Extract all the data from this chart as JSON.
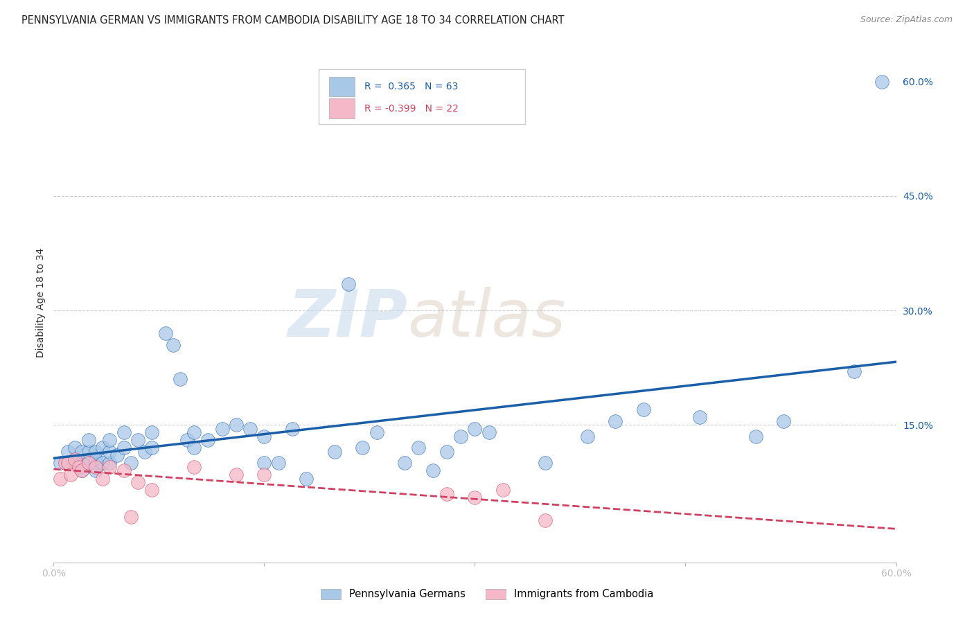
{
  "title": "PENNSYLVANIA GERMAN VS IMMIGRANTS FROM CAMBODIA DISABILITY AGE 18 TO 34 CORRELATION CHART",
  "source": "Source: ZipAtlas.com",
  "xlabel_bottom_left": "0.0%",
  "xlabel_bottom_right": "60.0%",
  "ylabel": "Disability Age 18 to 34",
  "y_ticks": [
    0.0,
    0.15,
    0.3,
    0.45,
    0.6
  ],
  "y_tick_labels": [
    "",
    "15.0%",
    "30.0%",
    "45.0%",
    "60.0%"
  ],
  "x_min": 0.0,
  "x_max": 0.6,
  "y_min": -0.03,
  "y_max": 0.65,
  "R_blue": 0.365,
  "N_blue": 63,
  "R_pink": -0.399,
  "N_pink": 22,
  "blue_color": "#a8c8e8",
  "pink_color": "#f4b8c8",
  "blue_line_color": "#1a5fa8",
  "pink_line_color": "#d04060",
  "legend_label_blue": "Pennsylvania Germans",
  "legend_label_pink": "Immigrants from Cambodia",
  "watermark_zip": "ZIP",
  "watermark_atlas": "atlas",
  "blue_scatter_x": [
    0.005,
    0.01,
    0.01,
    0.015,
    0.015,
    0.02,
    0.02,
    0.02,
    0.025,
    0.025,
    0.025,
    0.03,
    0.03,
    0.03,
    0.03,
    0.035,
    0.035,
    0.04,
    0.04,
    0.04,
    0.045,
    0.05,
    0.05,
    0.055,
    0.06,
    0.065,
    0.07,
    0.07,
    0.08,
    0.085,
    0.09,
    0.095,
    0.1,
    0.1,
    0.11,
    0.12,
    0.13,
    0.14,
    0.15,
    0.15,
    0.16,
    0.17,
    0.18,
    0.2,
    0.21,
    0.22,
    0.23,
    0.25,
    0.26,
    0.27,
    0.28,
    0.29,
    0.3,
    0.31,
    0.35,
    0.38,
    0.4,
    0.42,
    0.46,
    0.5,
    0.52,
    0.57,
    0.59
  ],
  "blue_scatter_y": [
    0.1,
    0.1,
    0.115,
    0.1,
    0.12,
    0.09,
    0.1,
    0.115,
    0.1,
    0.115,
    0.13,
    0.09,
    0.1,
    0.105,
    0.115,
    0.1,
    0.12,
    0.1,
    0.115,
    0.13,
    0.11,
    0.12,
    0.14,
    0.1,
    0.13,
    0.115,
    0.12,
    0.14,
    0.27,
    0.255,
    0.21,
    0.13,
    0.12,
    0.14,
    0.13,
    0.145,
    0.15,
    0.145,
    0.1,
    0.135,
    0.1,
    0.145,
    0.08,
    0.115,
    0.335,
    0.12,
    0.14,
    0.1,
    0.12,
    0.09,
    0.115,
    0.135,
    0.145,
    0.14,
    0.1,
    0.135,
    0.155,
    0.17,
    0.16,
    0.135,
    0.155,
    0.22,
    0.6
  ],
  "pink_scatter_x": [
    0.005,
    0.008,
    0.01,
    0.012,
    0.015,
    0.018,
    0.02,
    0.025,
    0.03,
    0.035,
    0.04,
    0.05,
    0.055,
    0.06,
    0.07,
    0.1,
    0.13,
    0.15,
    0.28,
    0.3,
    0.32,
    0.35
  ],
  "pink_scatter_y": [
    0.08,
    0.1,
    0.1,
    0.085,
    0.105,
    0.095,
    0.09,
    0.1,
    0.095,
    0.08,
    0.095,
    0.09,
    0.03,
    0.075,
    0.065,
    0.095,
    0.085,
    0.085,
    0.06,
    0.055,
    0.065,
    0.025
  ],
  "grid_color": "#cccccc",
  "background_color": "#ffffff",
  "title_fontsize": 10.5,
  "axis_label_fontsize": 10,
  "tick_fontsize": 10
}
